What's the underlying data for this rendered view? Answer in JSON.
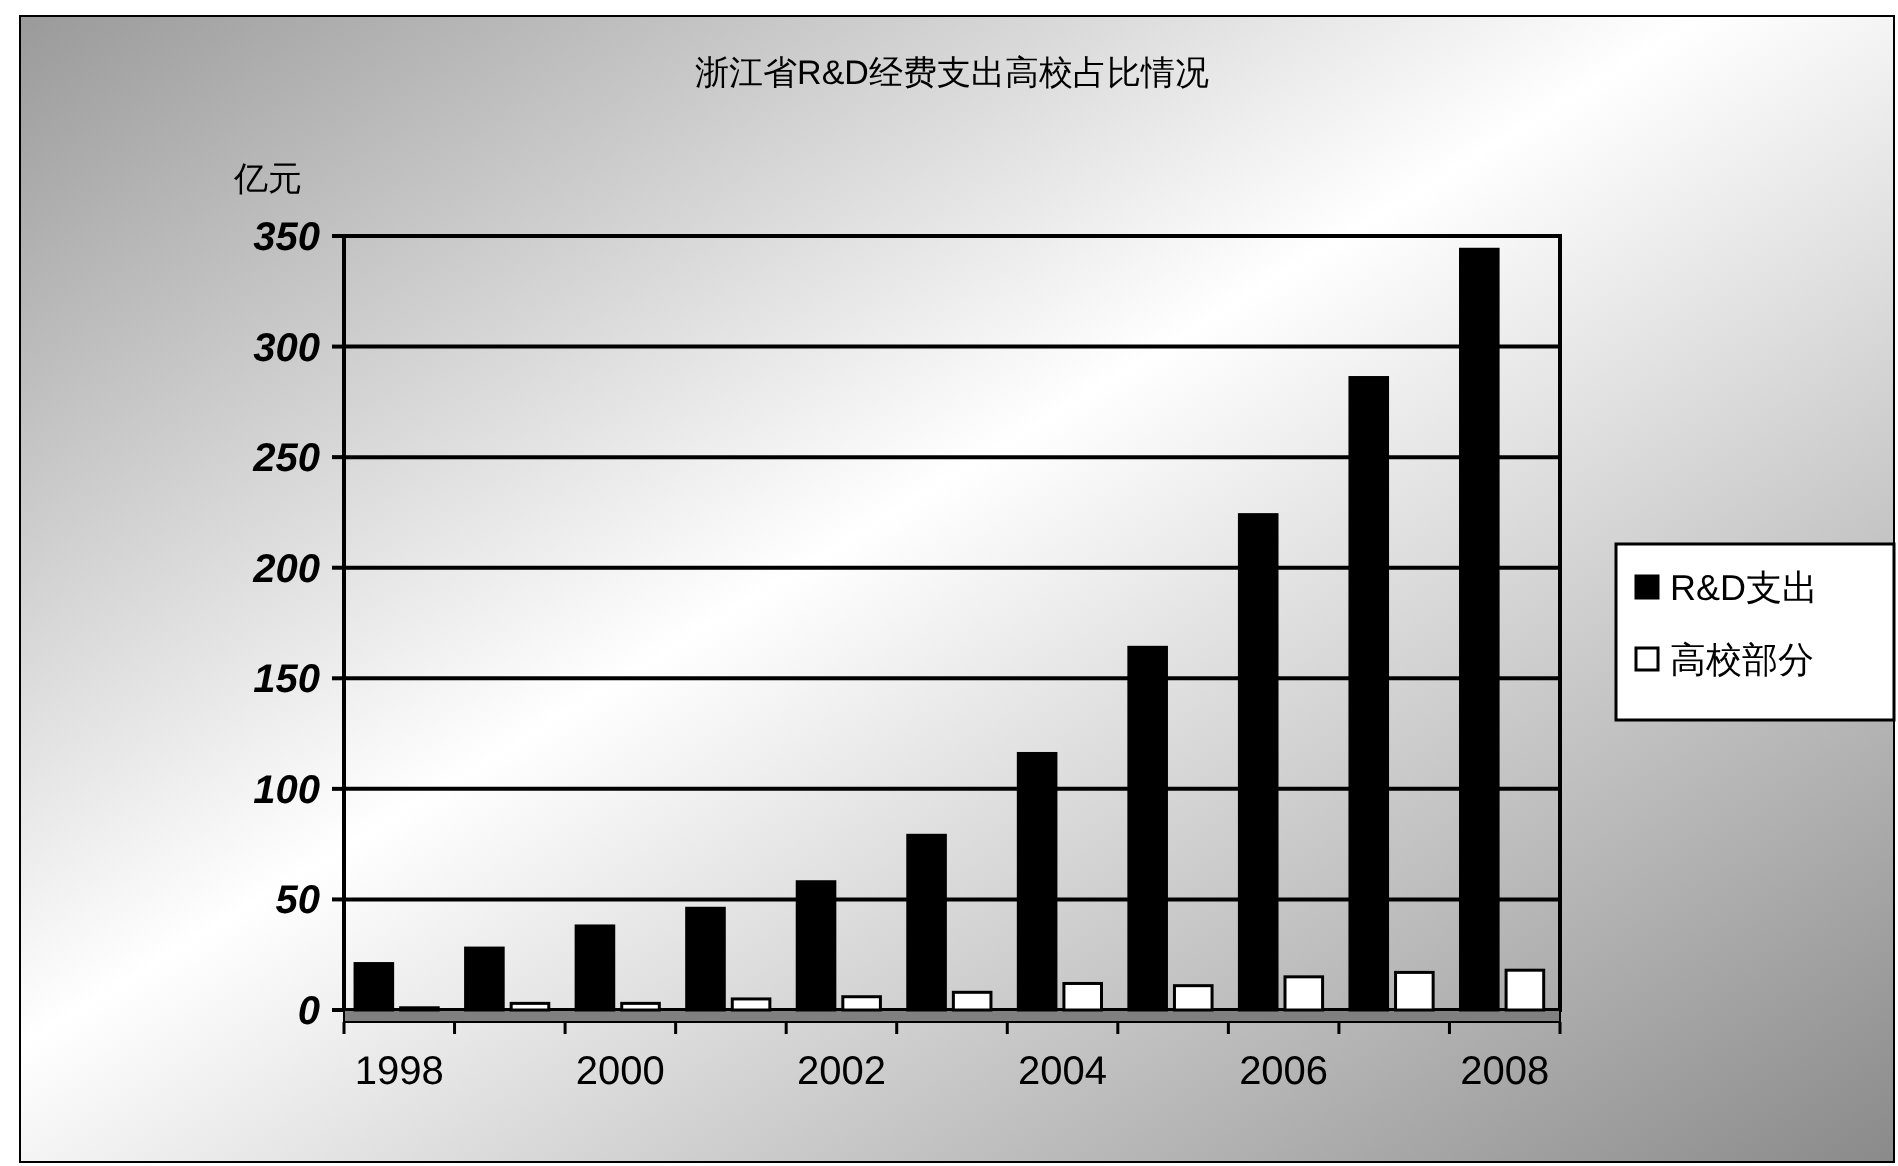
{
  "chart_data": {
    "type": "bar",
    "title": "浙江省R&D经费支出高校占比情况",
    "ylabel": "亿元",
    "categories": [
      "1998",
      null,
      "2000",
      null,
      "2002",
      null,
      "2004",
      null,
      "2006",
      null,
      "2008"
    ],
    "series": [
      {
        "name": "R&D支出",
        "color": "#000000",
        "values": [
          21,
          28,
          38,
          46,
          58,
          79,
          116,
          164,
          224,
          286,
          344
        ]
      },
      {
        "name": "高校部分",
        "color": "#ffffff",
        "values": [
          1,
          3,
          3,
          5,
          6,
          8,
          12,
          11,
          15,
          17,
          18
        ]
      }
    ],
    "ylim": [
      0,
      350
    ],
    "yticks": [
      0,
      50,
      100,
      150,
      200,
      250,
      300,
      350
    ],
    "grid": "y",
    "legend": "right"
  }
}
